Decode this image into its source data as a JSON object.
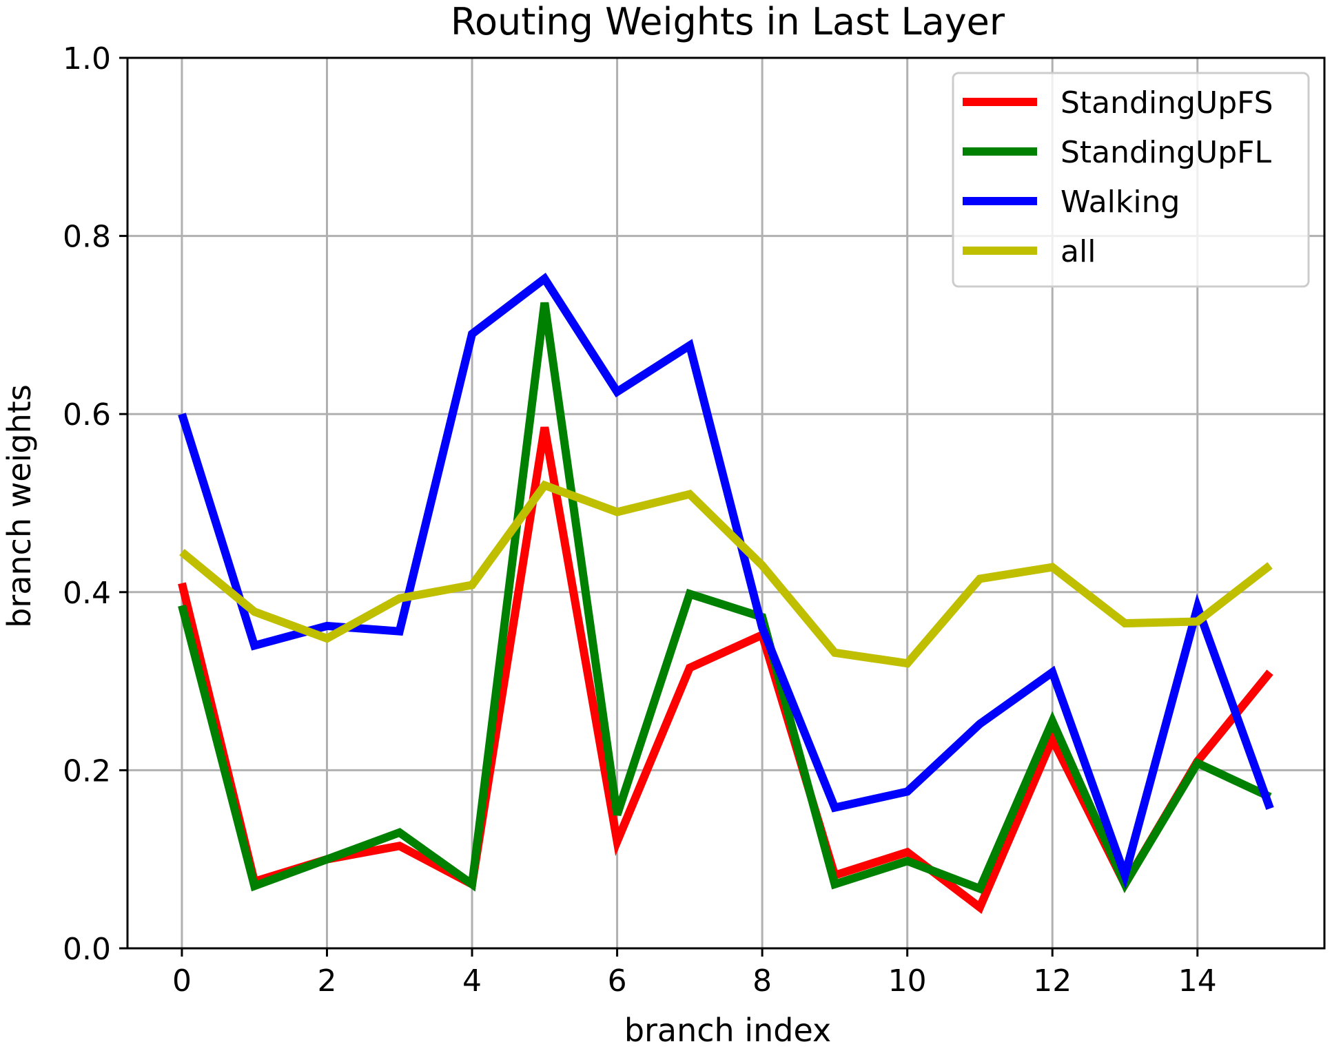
{
  "chart_data": {
    "type": "line",
    "title": "Routing Weights in Last Layer",
    "xlabel": "branch index",
    "ylabel": "branch weights",
    "xlim": [
      -0.75,
      15.75
    ],
    "ylim": [
      0.0,
      1.0
    ],
    "xticks": [
      0,
      2,
      4,
      6,
      8,
      10,
      12,
      14
    ],
    "xtick_labels": [
      "0",
      "2",
      "4",
      "6",
      "8",
      "10",
      "12",
      "14"
    ],
    "yticks": [
      0.0,
      0.2,
      0.4,
      0.6,
      0.8,
      1.0
    ],
    "ytick_labels": [
      "0.0",
      "0.2",
      "0.4",
      "0.6",
      "0.8",
      "1.0"
    ],
    "grid": true,
    "legend_position": "top-right",
    "x": [
      0,
      1,
      2,
      3,
      4,
      5,
      6,
      7,
      8,
      9,
      10,
      11,
      12,
      13,
      14,
      15
    ],
    "series": [
      {
        "name": "StandingUpFS",
        "color": "#ff0000",
        "values": [
          0.41,
          0.075,
          0.1,
          0.115,
          0.072,
          0.585,
          0.12,
          0.315,
          0.352,
          0.082,
          0.108,
          0.046,
          0.235,
          0.072,
          0.21,
          0.31
        ]
      },
      {
        "name": "StandingUpFL",
        "color": "#008000",
        "values": [
          0.385,
          0.07,
          0.1,
          0.13,
          0.072,
          0.725,
          0.15,
          0.398,
          0.372,
          0.072,
          0.098,
          0.067,
          0.255,
          0.072,
          0.208,
          0.17
        ]
      },
      {
        "name": "Walking",
        "color": "#0000ff",
        "values": [
          0.6,
          0.34,
          0.362,
          0.356,
          0.69,
          0.752,
          0.625,
          0.677,
          0.36,
          0.158,
          0.176,
          0.252,
          0.31,
          0.082,
          0.383,
          0.157
        ]
      },
      {
        "name": "all",
        "color": "#bfbf00",
        "values": [
          0.445,
          0.378,
          0.348,
          0.393,
          0.408,
          0.52,
          0.49,
          0.51,
          0.43,
          0.332,
          0.32,
          0.415,
          0.428,
          0.365,
          0.367,
          0.43
        ]
      }
    ]
  }
}
